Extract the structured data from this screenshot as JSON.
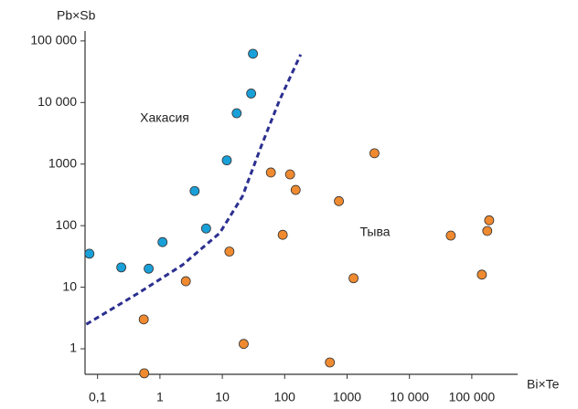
{
  "chart_data": {
    "type": "scatter",
    "x_label": "Bi×Te",
    "y_label": "Pb×Sb",
    "annotations": [
      "Хакасия",
      "Тыва"
    ],
    "log_x": true,
    "log_y": true,
    "xlim": [
      0.063,
      525000
    ],
    "ylim": [
      0.385,
      155000
    ],
    "xticks": [
      {
        "value": 0.1,
        "label": "0,1"
      },
      1,
      10,
      100,
      1000,
      {
        "value": 10000,
        "label": "10 000"
      },
      {
        "value": 100000,
        "label": "100 000"
      }
    ],
    "yticks": [
      1,
      10,
      100,
      1000,
      {
        "value": 10000,
        "label": "10 000"
      },
      {
        "value": 100000,
        "label": "100 000"
      }
    ],
    "series": [
      {
        "color": "#1aa0d8",
        "x": [
          0.074,
          0.24,
          0.66,
          1.1,
          3.6,
          5.5,
          11.8,
          17,
          29,
          31
        ],
        "values": [
          35,
          21,
          20,
          54,
          365,
          90,
          1150,
          6700,
          14000,
          62000
        ]
      },
      {
        "color": "#f08a30",
        "x": [
          0.55,
          0.56,
          2.6,
          13,
          22,
          60,
          93,
          122,
          150,
          530,
          740,
          1270,
          2750,
          46000,
          145000,
          177000,
          190000
        ],
        "values": [
          3,
          0.4,
          12.5,
          38,
          1.2,
          730,
          71,
          680,
          380,
          0.6,
          250,
          14,
          1500,
          69,
          16,
          82,
          122
        ]
      },
      {
        "type": "line",
        "color": "#2b2f8f",
        "dashed": true,
        "x": [
          0.066,
          0.43,
          2.3,
          9.1,
          21,
          42,
          82,
          180
        ],
        "values": [
          2.5,
          7.8,
          23,
          76,
          300,
          1950,
          10700,
          60000
        ]
      }
    ]
  }
}
